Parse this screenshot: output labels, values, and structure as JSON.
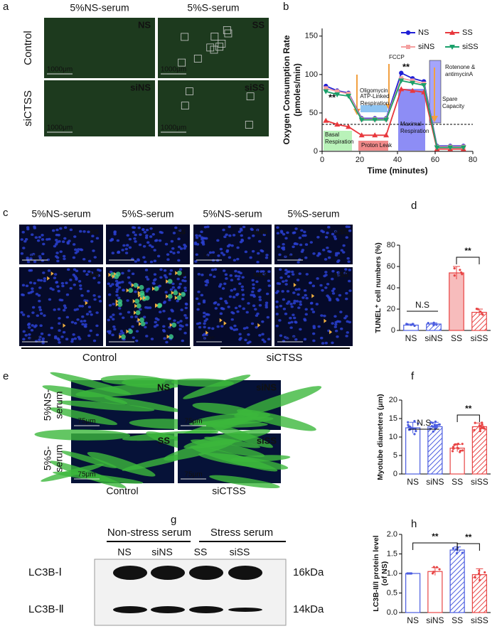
{
  "panel_labels": [
    "a",
    "b",
    "c",
    "d",
    "e",
    "f",
    "g",
    "h"
  ],
  "panel_a": {
    "columns": [
      "5%NS-serum",
      "5%S-serum"
    ],
    "rows": [
      "Control",
      "siCTSS"
    ],
    "images": [
      {
        "label": "NS",
        "scale": "1000μm"
      },
      {
        "label": "SS",
        "scale": "1000μm"
      },
      {
        "label": "siNS",
        "scale": "1000μm"
      },
      {
        "label": "siSS",
        "scale": "1000μm"
      }
    ]
  },
  "panel_c": {
    "columns": [
      "5%NS-serum",
      "5%S-serum",
      "5%NS-serum",
      "5%S-serum"
    ],
    "images": [
      {
        "label": "NS",
        "scale": "200μm"
      },
      {
        "label": "SS",
        "scale": "200μm"
      },
      {
        "label": "siNS",
        "scale": "200μm"
      },
      {
        "label": "siSS",
        "scale": "200μm"
      },
      {
        "label": "NS",
        "scale": "200μm"
      },
      {
        "label": "SS",
        "scale": "200μm"
      },
      {
        "label": "siNS",
        "scale": "200μm"
      },
      {
        "label": "siSS",
        "scale": "200μm"
      }
    ],
    "groups": [
      "Control",
      "siCTSS"
    ]
  },
  "panel_e": {
    "rows": [
      [
        "5%NS-",
        "serum"
      ],
      [
        "5%S-",
        "serum"
      ]
    ],
    "columns": [
      "Control",
      "siCTSS"
    ],
    "images": [
      {
        "label": "NS",
        "scale": "75μm"
      },
      {
        "label": "siNS",
        "scale": "75μm"
      },
      {
        "label": "SS",
        "scale": "75μm"
      },
      {
        "label": "siSS",
        "scale": "75μm"
      }
    ]
  },
  "panel_g": {
    "groups": [
      "Non-stress serum",
      "Stress serum"
    ],
    "lanes": [
      "NS",
      "siNS",
      "SS",
      "siSS"
    ],
    "bands": [
      {
        "name": "LC3B-Ⅰ",
        "size": "16kDa"
      },
      {
        "name": "LC3B-Ⅱ",
        "size": "14kDa"
      }
    ]
  },
  "chart_data": [
    {
      "type": "line",
      "y_label": [
        "Oxygen Consumption Rate",
        "(pmoles/min)"
      ],
      "x_label": "Time (minutes)",
      "x": [
        2,
        8,
        14,
        21,
        28,
        34,
        42,
        48,
        54,
        61,
        68,
        75
      ],
      "series": [
        {
          "name": "NS",
          "color": "#1f1fd6",
          "marker": "circle",
          "values": [
            85,
            79,
            76,
            43,
            43,
            43,
            102,
            95,
            91,
            7,
            7,
            7
          ]
        },
        {
          "name": "SS",
          "color": "#e8383d",
          "marker": "triangle",
          "values": [
            40,
            35,
            32,
            21,
            21,
            21,
            81,
            79,
            77,
            3,
            3,
            3
          ]
        },
        {
          "name": "siNS",
          "color": "#f4a0a0",
          "marker": "square",
          "values": [
            82,
            78,
            75,
            42,
            42,
            42,
            95,
            92,
            88,
            6,
            6,
            6
          ]
        },
        {
          "name": "siSS",
          "color": "#1aa06a",
          "marker": "triangle-down",
          "values": [
            78,
            74,
            72,
            41,
            41,
            41,
            92,
            89,
            86,
            5,
            5,
            5
          ]
        }
      ],
      "xlim": [
        0,
        80
      ],
      "xticks": [
        0,
        20,
        40,
        60,
        80
      ],
      "ylim": [
        0,
        160
      ],
      "yticks": [
        0,
        50,
        100,
        150
      ],
      "annotations": [
        [
          "**"
        ],
        [
          "Oligomycin"
        ],
        [
          "FCCP"
        ],
        [
          "**"
        ],
        [
          "Rotenone &",
          "antimycinA"
        ],
        [
          "ATP-Linked",
          "Respiration"
        ],
        [
          "Basal",
          "Respiration"
        ],
        [
          "Proton Leak"
        ],
        [
          "Maximal",
          "Respiration"
        ],
        [
          "Spare",
          "Capacity"
        ]
      ]
    },
    {
      "type": "bar",
      "y_label": "TUNEL⁺ cell numbers (%)",
      "categories": [
        "NS",
        "siNS",
        "SS",
        "siSS"
      ],
      "values": [
        5,
        6,
        54,
        17
      ],
      "errors": [
        1,
        1,
        6,
        3
      ],
      "colors": [
        "#4a5ce0",
        "#4a5ce0",
        "#e84545",
        "#e84545"
      ],
      "hatched": [
        false,
        true,
        false,
        true
      ],
      "ylim": [
        0,
        80
      ],
      "yticks": [
        0,
        20,
        40,
        60,
        80
      ],
      "annotations": [
        "N.S",
        "**"
      ]
    },
    {
      "type": "bar",
      "y_label": "Myotube diameters (μm)",
      "categories": [
        "NS",
        "siNS",
        "SS",
        "siSS"
      ],
      "values": [
        12.5,
        12.8,
        7,
        12.8
      ],
      "errors": [
        1.5,
        1.2,
        1,
        1
      ],
      "colors": [
        "#4a5ce0",
        "#4a5ce0",
        "#e84545",
        "#e84545"
      ],
      "hatched": [
        false,
        true,
        false,
        true
      ],
      "ylim": [
        0,
        20
      ],
      "yticks": [
        0,
        5,
        10,
        15,
        20
      ],
      "annotations": [
        "N.S",
        "**"
      ]
    },
    {
      "type": "bar",
      "y_label": [
        "LC3B-II/I protein level",
        "(of NS)"
      ],
      "categories": [
        "NS",
        "siNS",
        "SS",
        "siSS"
      ],
      "values": [
        1.0,
        1.05,
        1.6,
        0.97
      ],
      "errors": [
        0,
        0.1,
        0.08,
        0.15
      ],
      "colors": [
        "#4a5ce0",
        "#e84545",
        "#4a5ce0",
        "#e84545"
      ],
      "hatched": [
        false,
        false,
        true,
        true
      ],
      "ylim": [
        0,
        2
      ],
      "yticks": [
        {
          "value": 0,
          "label": "0.0"
        },
        {
          "value": 0.5,
          "label": "0.5"
        },
        {
          "value": 1,
          "label": "1.0"
        },
        {
          "value": 1.5,
          "label": "1.5"
        },
        {
          "value": 2,
          "label": "2.0"
        }
      ],
      "annotations": [
        "**",
        "**"
      ]
    }
  ]
}
